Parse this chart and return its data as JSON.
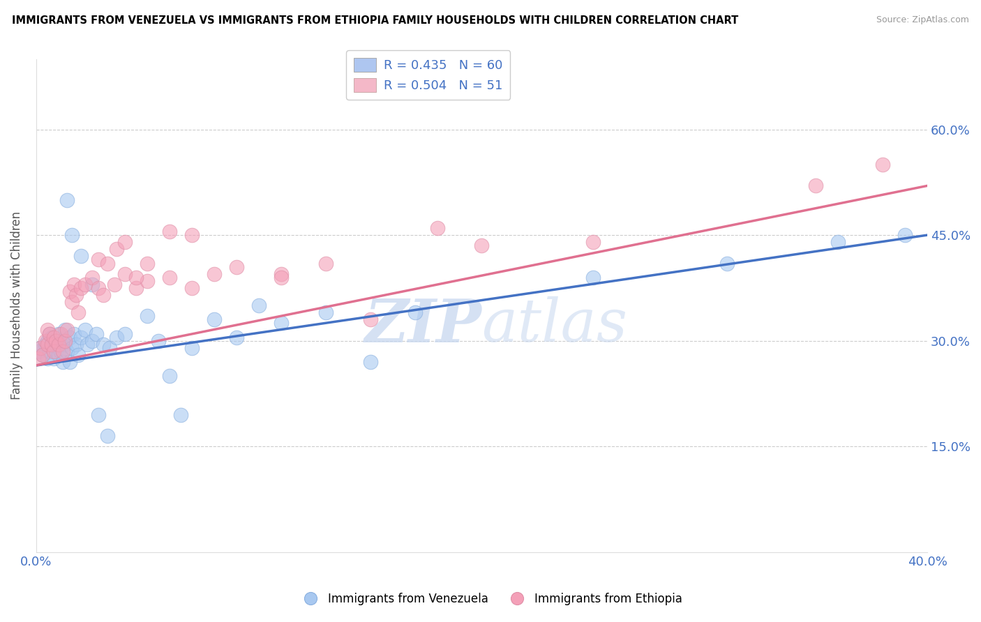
{
  "title": "IMMIGRANTS FROM VENEZUELA VS IMMIGRANTS FROM ETHIOPIA FAMILY HOUSEHOLDS WITH CHILDREN CORRELATION CHART",
  "source": "Source: ZipAtlas.com",
  "ylabel": "Family Households with Children",
  "xlim": [
    0.0,
    0.4
  ],
  "ylim": [
    0.0,
    0.7
  ],
  "ytick_labels": [
    "15.0%",
    "30.0%",
    "45.0%",
    "60.0%"
  ],
  "ytick_values": [
    0.15,
    0.3,
    0.45,
    0.6
  ],
  "xtick_labels": [
    "0.0%",
    "40.0%"
  ],
  "xtick_values": [
    0.0,
    0.4
  ],
  "legend_entries": [
    {
      "label": "R = 0.435   N = 60",
      "color": "#aec6f0"
    },
    {
      "label": "R = 0.504   N = 51",
      "color": "#f4b8c8"
    }
  ],
  "watermark_zip": "ZIP",
  "watermark_atlas": "atlas",
  "tick_label_color": "#4472C4",
  "grid_color": "#cccccc",
  "blue_scatter_color": "#a8c8f0",
  "pink_scatter_color": "#f4a0b8",
  "line_blue": "#4472C4",
  "line_pink": "#e07090",
  "venezuela_x": [
    0.001,
    0.002,
    0.003,
    0.004,
    0.005,
    0.005,
    0.006,
    0.006,
    0.007,
    0.007,
    0.008,
    0.008,
    0.009,
    0.009,
    0.01,
    0.01,
    0.011,
    0.011,
    0.012,
    0.012,
    0.013,
    0.013,
    0.014,
    0.015,
    0.015,
    0.016,
    0.017,
    0.018,
    0.019,
    0.02,
    0.022,
    0.023,
    0.025,
    0.027,
    0.03,
    0.033,
    0.036,
    0.04,
    0.05,
    0.055,
    0.06,
    0.065,
    0.07,
    0.08,
    0.09,
    0.1,
    0.11,
    0.13,
    0.15,
    0.17,
    0.014,
    0.016,
    0.02,
    0.025,
    0.028,
    0.032,
    0.25,
    0.31,
    0.36,
    0.39
  ],
  "venezuela_y": [
    0.285,
    0.29,
    0.28,
    0.295,
    0.3,
    0.275,
    0.285,
    0.31,
    0.29,
    0.305,
    0.275,
    0.3,
    0.285,
    0.295,
    0.31,
    0.28,
    0.295,
    0.285,
    0.3,
    0.27,
    0.295,
    0.315,
    0.285,
    0.305,
    0.27,
    0.29,
    0.31,
    0.295,
    0.28,
    0.305,
    0.315,
    0.295,
    0.3,
    0.31,
    0.295,
    0.29,
    0.305,
    0.31,
    0.335,
    0.3,
    0.25,
    0.195,
    0.29,
    0.33,
    0.305,
    0.35,
    0.325,
    0.34,
    0.27,
    0.34,
    0.5,
    0.45,
    0.42,
    0.38,
    0.195,
    0.165,
    0.39,
    0.41,
    0.44,
    0.45
  ],
  "ethiopia_x": [
    0.001,
    0.002,
    0.003,
    0.004,
    0.005,
    0.005,
    0.006,
    0.007,
    0.008,
    0.008,
    0.009,
    0.01,
    0.011,
    0.012,
    0.013,
    0.014,
    0.015,
    0.016,
    0.017,
    0.018,
    0.019,
    0.02,
    0.022,
    0.025,
    0.028,
    0.03,
    0.035,
    0.04,
    0.045,
    0.05,
    0.06,
    0.07,
    0.08,
    0.09,
    0.11,
    0.13,
    0.15,
    0.18,
    0.2,
    0.25,
    0.028,
    0.032,
    0.036,
    0.04,
    0.045,
    0.05,
    0.06,
    0.07,
    0.11,
    0.35,
    0.38
  ],
  "ethiopia_y": [
    0.275,
    0.29,
    0.28,
    0.3,
    0.315,
    0.295,
    0.31,
    0.295,
    0.305,
    0.285,
    0.3,
    0.295,
    0.31,
    0.285,
    0.3,
    0.315,
    0.37,
    0.355,
    0.38,
    0.365,
    0.34,
    0.375,
    0.38,
    0.39,
    0.375,
    0.365,
    0.38,
    0.395,
    0.375,
    0.385,
    0.39,
    0.375,
    0.395,
    0.405,
    0.395,
    0.41,
    0.33,
    0.46,
    0.435,
    0.44,
    0.415,
    0.41,
    0.43,
    0.44,
    0.39,
    0.41,
    0.455,
    0.45,
    0.39,
    0.52,
    0.55
  ],
  "ven_trendline": [
    0.265,
    0.45
  ],
  "eth_trendline": [
    0.265,
    0.52
  ]
}
